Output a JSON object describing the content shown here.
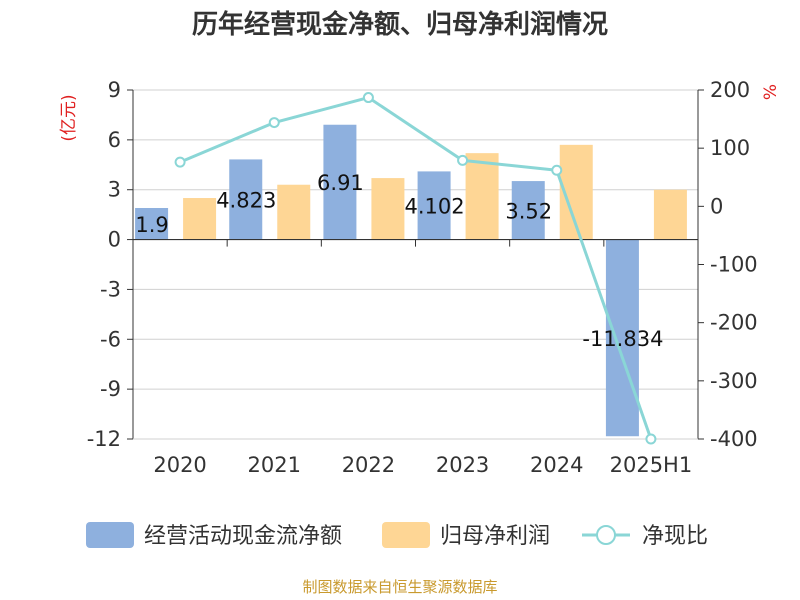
{
  "chart_data": {
    "type": "bar",
    "title": "历年经营现金净额、归母净利润情况",
    "categories": [
      "2020",
      "2021",
      "2022",
      "2023",
      "2024",
      "2025H1"
    ],
    "series": [
      {
        "name": "经营活动现金流净额",
        "type": "bar",
        "axis": "left",
        "color": "#8eb0de",
        "values": [
          1.9,
          4.823,
          6.91,
          4.102,
          3.52,
          -11.834
        ],
        "data_labels": [
          "1.9",
          "4.823",
          "6.91",
          "4.102",
          "3.52",
          "-11.834"
        ]
      },
      {
        "name": "归母净利润",
        "type": "bar",
        "axis": "left",
        "color": "#fed695",
        "values": [
          2.5,
          3.3,
          3.7,
          5.2,
          5.7,
          3.0
        ]
      },
      {
        "name": "净现比",
        "type": "line",
        "axis": "right",
        "color": "#8ad6d6",
        "values": [
          76,
          144,
          187,
          79,
          62,
          -400
        ]
      }
    ],
    "y_left": {
      "unit": "(亿元)",
      "ylim": [
        -12,
        9
      ],
      "ticks": [
        "9",
        "6",
        "3",
        "0",
        "-3",
        "-6",
        "-9",
        "-12"
      ]
    },
    "y_right": {
      "unit": "%",
      "ylim": [
        -400,
        200
      ],
      "ticks": [
        "200",
        "100",
        "0",
        "-100",
        "-200",
        "-300",
        "-400"
      ]
    },
    "grid": true,
    "legend_position": "bottom",
    "unit_color": "#e02020"
  },
  "source": {
    "text": "制图数据来自恒生聚源数据库",
    "color": "#c99a2e"
  }
}
